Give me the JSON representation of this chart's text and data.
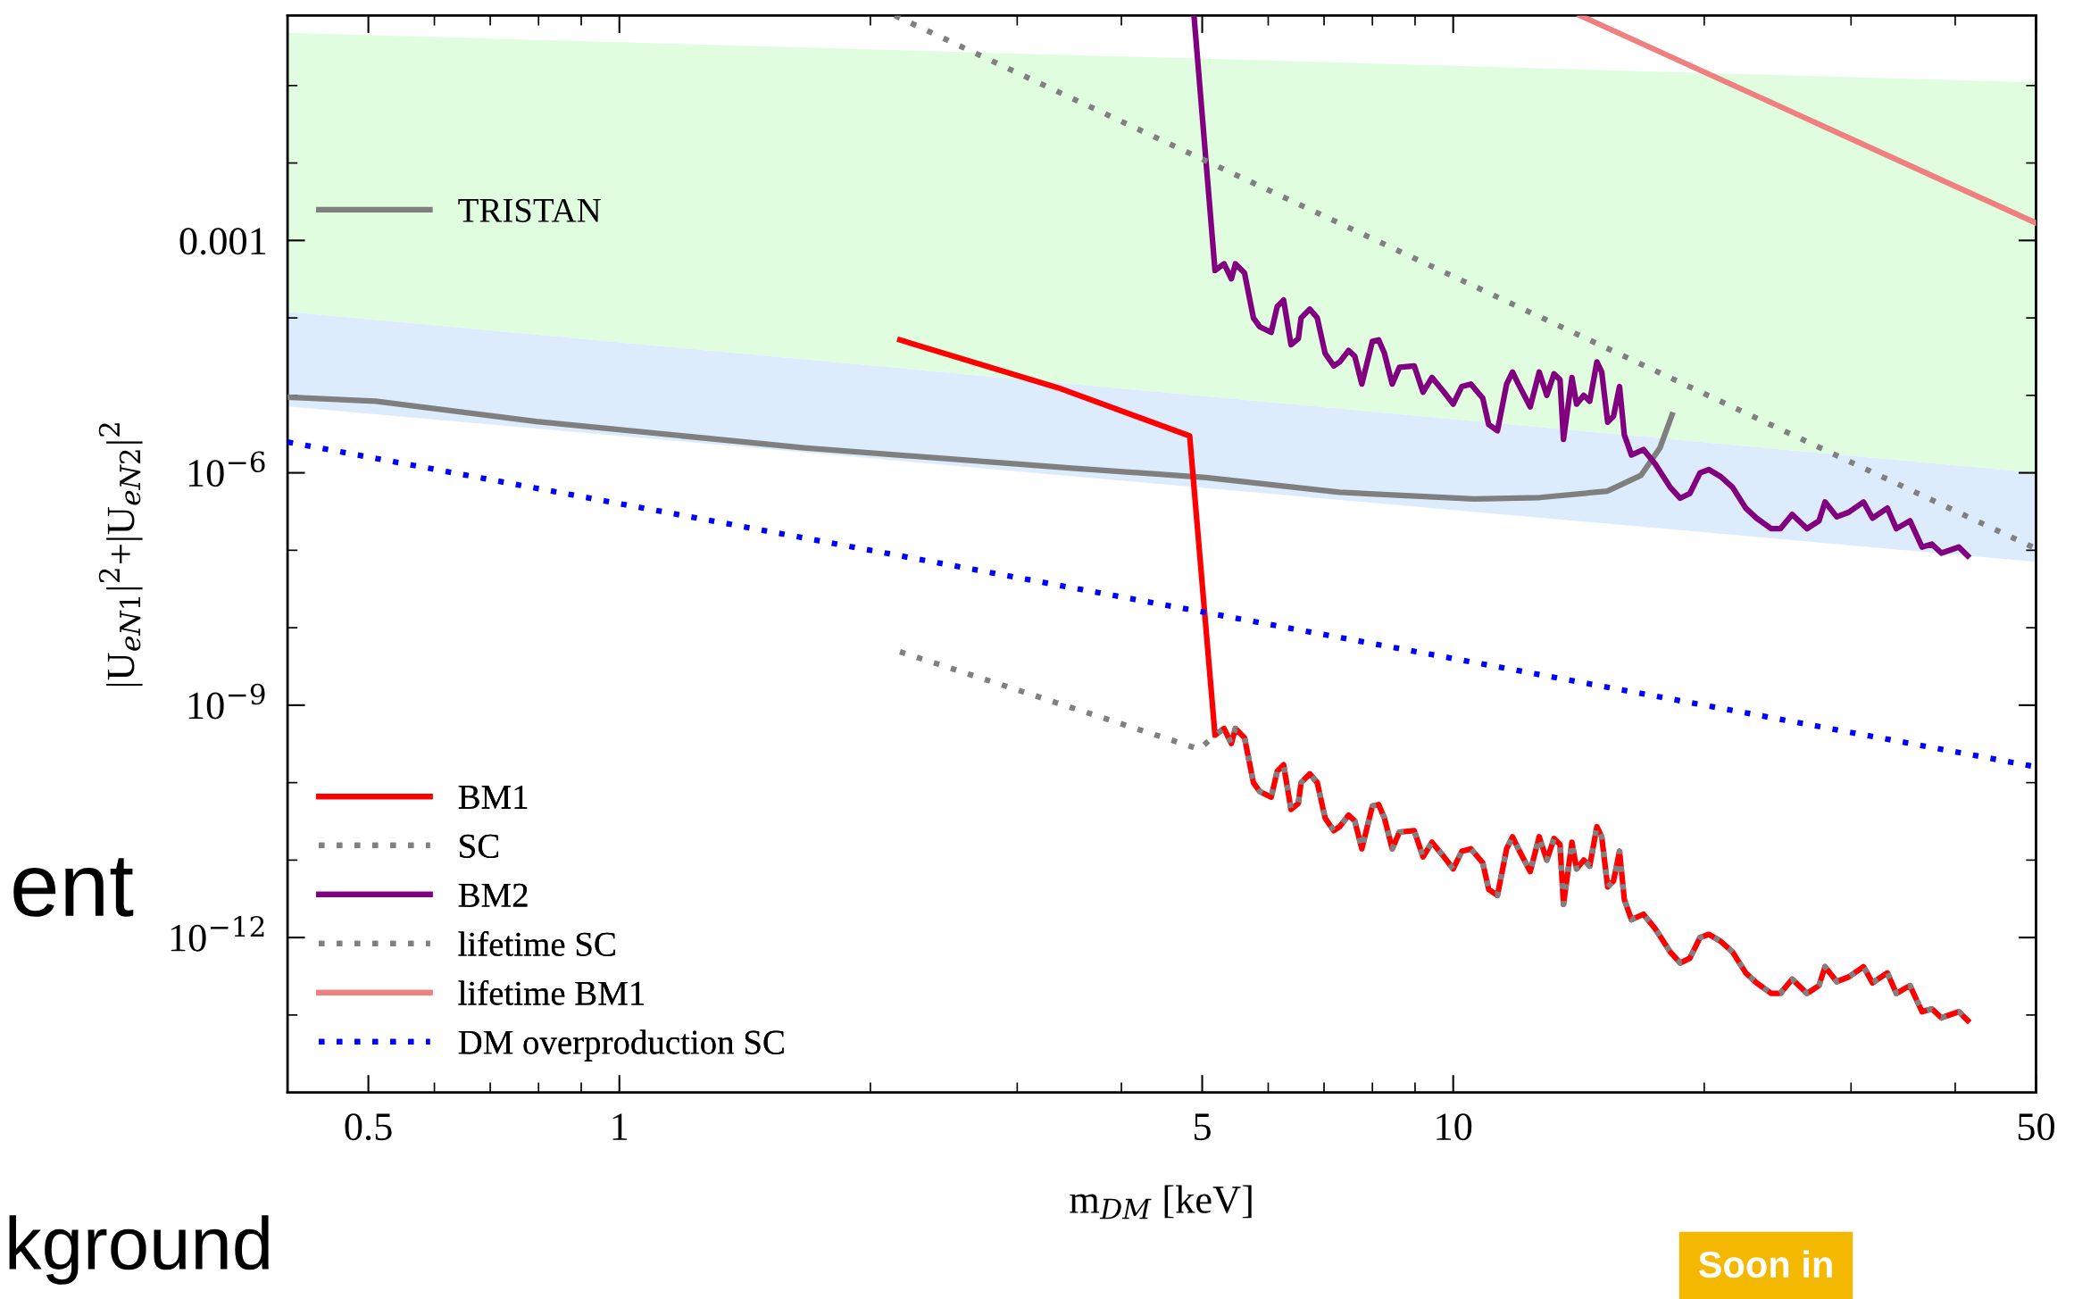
{
  "chart_data": {
    "type": "line",
    "xlabel": "m$_{DM}$ [keV]",
    "ylabel": "|U$_{eN1}$|$^{2}$+|U$_{eN2}$|$^{2}$",
    "log": "xy",
    "grid": false,
    "legend": "bottom left",
    "xlim": [
      0.4,
      50
    ],
    "ylim": [
      1e-14,
      0.8
    ],
    "xticks": [
      0.5,
      {
        "value": 0.6,
        "label": null
      },
      {
        "value": 0.7,
        "label": null
      },
      {
        "value": 0.8,
        "label": null
      },
      {
        "value": 0.9,
        "label": null
      },
      1,
      {
        "value": 2,
        "label": null
      },
      {
        "value": 3,
        "label": null
      },
      {
        "value": 4,
        "label": null
      },
      5,
      {
        "value": 6,
        "label": null
      },
      {
        "value": 7,
        "label": null
      },
      {
        "value": 8,
        "label": null
      },
      {
        "value": 9,
        "label": null
      },
      10,
      {
        "value": 20,
        "label": null
      },
      {
        "value": 30,
        "label": null
      },
      {
        "value": 40,
        "label": null
      },
      50
    ],
    "yticks": [
      {
        "value": 1e-13,
        "label": null
      },
      {
        "value": 1e-12,
        "label": "10$^{−12}$"
      },
      {
        "value": 1e-11,
        "label": null
      },
      {
        "value": 1e-10,
        "label": null
      },
      {
        "value": 1e-09,
        "label": "10$^{−9}$"
      },
      {
        "value": 1e-08,
        "label": null
      },
      {
        "value": 1e-07,
        "label": null
      },
      {
        "value": 1e-06,
        "label": "10$^{−6}$"
      },
      {
        "value": 1e-05,
        "label": null
      },
      {
        "value": 0.0001,
        "label": null
      },
      {
        "value": 0.001,
        "label": "0.001"
      },
      {
        "value": 0.01,
        "label": null
      },
      {
        "value": 0.1,
        "label": null
      }
    ],
    "annotations": [
      "ent",
      "kground",
      "Soon in"
    ],
    "series": [
      {
        "type": "area",
        "color": "#e0fde0",
        "x": [
          0.4,
          50
        ],
        "values": [
          null,
          null
        ],
        "upper": [
          0.48,
          0.11
        ],
        "lower": [
          0.00012,
          1e-06
        ]
      },
      {
        "type": "area",
        "color": "#dcecfd",
        "x": [
          0.4,
          50
        ],
        "values": [
          null,
          null
        ],
        "upper": [
          0.00012,
          1e-06
        ],
        "lower": [
          7.2e-06,
          7.1e-08
        ]
      },
      {
        "name": "TRISTAN",
        "color": "#7f7f7f",
        "line_style": "solid",
        "x": [
          0.4,
          0.51,
          0.795,
          1.665,
          3.49,
          5.05,
          7.31,
          10.6,
          12.7,
          15.3,
          16.8,
          17.7,
          18.3
        ],
        "values": [
          9.5e-06,
          8.4e-06,
          4.6e-06,
          2.1e-06,
          1.15e-06,
          8.7e-07,
          5.6e-07,
          4.6e-07,
          4.8e-07,
          5.8e-07,
          9.3e-07,
          2.1e-06,
          5.6e-06
        ]
      },
      {
        "name": "BM1",
        "color": "#ff0000",
        "line_style": "solid",
        "x": [
          2.17,
          3.36,
          4.83,
          5.18,
          5.31,
          5.42,
          5.48,
          5.62,
          5.76,
          5.86,
          6.05,
          6.15,
          6.26,
          6.39,
          6.52,
          6.57,
          6.73,
          6.87,
          7.02,
          7.19,
          7.31,
          7.49,
          7.62,
          7.77,
          8.0,
          8.14,
          8.27,
          8.45,
          8.62,
          8.98,
          9.2,
          9.43,
          9.75,
          10.0,
          10.24,
          10.5,
          10.85,
          11.03,
          11.3,
          11.59,
          11.78,
          11.97,
          12.37,
          12.68,
          12.95,
          13.21,
          13.43,
          13.56,
          13.88,
          14.06,
          14.34,
          14.58,
          14.87,
          15.07,
          15.32,
          15.57,
          15.83,
          16.04,
          16.36,
          16.91,
          17.47,
          18.21,
          18.72,
          19.22,
          19.77,
          20.26,
          20.94,
          21.63,
          22.43,
          23.11,
          24.07,
          24.68,
          25.5,
          26.57,
          27.46,
          27.92,
          28.84,
          29.81,
          31.05,
          31.83,
          33.17,
          34.0,
          35.3,
          36.5,
          37.5,
          38.5,
          40.4,
          41.4
        ],
        "values": [
          5.2e-05,
          1.25e-05,
          3e-06,
          4.1e-10,
          5e-10,
          3.2e-10,
          5e-10,
          3.8e-10,
          1e-10,
          7.7e-11,
          6.5e-11,
          1.4e-10,
          1.7e-10,
          4.5e-11,
          5.4e-11,
          1e-10,
          1.3e-10,
          1e-10,
          3.5e-11,
          2.4e-11,
          2.7e-11,
          3.8e-11,
          3.2e-11,
          1.4e-11,
          5e-11,
          5.2e-11,
          3.5e-11,
          1.4e-11,
          2.3e-11,
          2.4e-11,
          1.1e-11,
          1.7e-11,
          1.1e-11,
          7.7e-12,
          1.3e-11,
          1.4e-11,
          9.2e-12,
          4.2e-12,
          3.5e-12,
          1.4e-11,
          2e-11,
          1.4e-11,
          7.1e-12,
          2e-11,
          1e-11,
          1.9e-11,
          1.6e-11,
          2.7e-12,
          1.7e-11,
          7.7e-12,
          1e-11,
          8.4e-12,
          2.7e-11,
          2e-11,
          4.5e-12,
          5.4e-12,
          1.3e-11,
          3.1e-12,
          1.7e-12,
          2e-12,
          1.3e-12,
          6.5e-13,
          4.7e-13,
          5.4e-13,
          1e-12,
          1.1e-12,
          8.9e-13,
          6.5e-13,
          3.5e-13,
          2.6e-13,
          1.9e-13,
          1.9e-13,
          2.9e-13,
          1.9e-13,
          2.4e-13,
          4.2e-13,
          2.7e-13,
          3.1e-13,
          4.2e-13,
          2.6e-13,
          3.5e-13,
          1.9e-13,
          2.4e-13,
          1.1e-13,
          1.2e-13,
          9.2e-14,
          1.1e-13,
          8.5e-14
        ]
      },
      {
        "name": "SC",
        "color": "#808080",
        "line_style": "dotted",
        "x": [
          2.17,
          4.96,
          5.18,
          5.31,
          5.42,
          5.48,
          5.62,
          5.76,
          5.86,
          6.05,
          6.15,
          6.26,
          6.39,
          6.52,
          6.57,
          6.73,
          6.87,
          7.02,
          7.19,
          7.31,
          7.49,
          7.62,
          7.77,
          8.0,
          8.14,
          8.27,
          8.45,
          8.62,
          8.98,
          9.2,
          9.43,
          9.75,
          10.0,
          10.24,
          10.5,
          10.85,
          11.03,
          11.3,
          11.59,
          11.78,
          11.97,
          12.37,
          12.68,
          12.95,
          13.21,
          13.43,
          13.56,
          13.88,
          14.06,
          14.34,
          14.58,
          14.87,
          15.07,
          15.32,
          15.57,
          15.83,
          16.04,
          16.36,
          16.91,
          17.47,
          18.21,
          18.72,
          19.22,
          19.77,
          20.26,
          20.94,
          21.63,
          22.43,
          23.11,
          24.07,
          24.68,
          25.5,
          26.57,
          27.46,
          27.92,
          28.84,
          29.81,
          31.05,
          31.83,
          33.17,
          34.0,
          35.3,
          36.5,
          37.5,
          38.5,
          40.4,
          41.4
        ],
        "values": [
          4.9e-09,
          2.7e-10,
          4.1e-10,
          5e-10,
          3.2e-10,
          5e-10,
          3.8e-10,
          1e-10,
          7.7e-11,
          6.5e-11,
          1.4e-10,
          1.7e-10,
          4.5e-11,
          5.4e-11,
          1e-10,
          1.3e-10,
          1e-10,
          3.5e-11,
          2.4e-11,
          2.7e-11,
          3.8e-11,
          3.2e-11,
          1.4e-11,
          5e-11,
          5.2e-11,
          3.5e-11,
          1.4e-11,
          2.3e-11,
          2.4e-11,
          1.1e-11,
          1.7e-11,
          1.1e-11,
          7.7e-12,
          1.3e-11,
          1.4e-11,
          9.2e-12,
          4.2e-12,
          3.5e-12,
          1.4e-11,
          2e-11,
          1.4e-11,
          7.1e-12,
          2e-11,
          1e-11,
          1.9e-11,
          1.6e-11,
          2.7e-12,
          1.7e-11,
          7.7e-12,
          1e-11,
          8.4e-12,
          2.7e-11,
          2e-11,
          4.5e-12,
          5.4e-12,
          1.3e-11,
          3.1e-12,
          1.7e-12,
          2e-12,
          1.3e-12,
          6.5e-13,
          4.7e-13,
          5.4e-13,
          1e-12,
          1.1e-12,
          8.9e-13,
          6.5e-13,
          3.5e-13,
          2.6e-13,
          1.9e-13,
          1.9e-13,
          2.9e-13,
          1.9e-13,
          2.4e-13,
          4.2e-13,
          2.7e-13,
          3.1e-13,
          4.2e-13,
          2.6e-13,
          3.5e-13,
          1.9e-13,
          2.4e-13,
          1.1e-13,
          1.2e-13,
          9.2e-14,
          1.1e-13,
          8.5e-14
        ]
      },
      {
        "name": "BM2",
        "color": "#800080",
        "line_style": "solid",
        "x": [
          4.89,
          5.18,
          5.31,
          5.42,
          5.48,
          5.62,
          5.76,
          5.86,
          6.05,
          6.15,
          6.26,
          6.39,
          6.52,
          6.57,
          6.73,
          6.87,
          7.02,
          7.19,
          7.31,
          7.49,
          7.62,
          7.77,
          8.0,
          8.14,
          8.27,
          8.45,
          8.62,
          8.98,
          9.2,
          9.43,
          9.75,
          10.0,
          10.24,
          10.5,
          10.85,
          11.03,
          11.3,
          11.59,
          11.78,
          11.97,
          12.37,
          12.68,
          12.95,
          13.21,
          13.43,
          13.56,
          13.88,
          14.06,
          14.34,
          14.58,
          14.87,
          15.07,
          15.32,
          15.57,
          15.83,
          16.04,
          16.36,
          16.91,
          17.47,
          18.21,
          18.72,
          19.22,
          19.77,
          20.26,
          20.94,
          21.63,
          22.43,
          23.11,
          24.07,
          24.68,
          25.5,
          26.57,
          27.46,
          27.92,
          28.84,
          29.81,
          31.05,
          31.83,
          33.17,
          34.0,
          35.3,
          36.5,
          37.5,
          38.5,
          40.4,
          41.4
        ],
        "values": [
          0.76,
          0.00041,
          0.0005,
          0.00032,
          0.0005,
          0.00038,
          0.0001,
          7.7e-05,
          6.5e-05,
          0.00014,
          0.00017,
          4.5e-05,
          5.4e-05,
          0.0001,
          0.00013,
          0.0001,
          3.5e-05,
          2.4e-05,
          2.7e-05,
          3.8e-05,
          3.2e-05,
          1.4e-05,
          5e-05,
          5.2e-05,
          3.5e-05,
          1.4e-05,
          2.3e-05,
          2.4e-05,
          1.1e-05,
          1.7e-05,
          1.1e-05,
          7.7e-06,
          1.3e-05,
          1.4e-05,
          9.2e-06,
          4.2e-06,
          3.5e-06,
          1.4e-05,
          2e-05,
          1.4e-05,
          7.1e-06,
          2e-05,
          1e-05,
          1.9e-05,
          1.6e-05,
          2.7e-06,
          1.7e-05,
          7.7e-06,
          1e-05,
          8.4e-06,
          2.7e-05,
          2e-05,
          4.5e-06,
          5.4e-06,
          1.3e-05,
          3.1e-06,
          1.7e-06,
          2e-06,
          1.3e-06,
          6.5e-07,
          4.7e-07,
          5.4e-07,
          1e-06,
          1.1e-06,
          8.9e-07,
          6.5e-07,
          3.5e-07,
          2.6e-07,
          1.9e-07,
          1.9e-07,
          2.9e-07,
          1.9e-07,
          2.4e-07,
          4.2e-07,
          2.7e-07,
          3.1e-07,
          4.2e-07,
          2.6e-07,
          3.5e-07,
          1.9e-07,
          2.4e-07,
          1.1e-07,
          1.2e-07,
          9.2e-08,
          1.1e-07,
          8.5e-08
        ]
      },
      {
        "name": "lifetime SC",
        "color": "#808080",
        "line_style": "dotted",
        "x": [
          2.14,
          50
        ],
        "values": [
          0.8,
          1.05e-07
        ]
      },
      {
        "name": "lifetime BM1",
        "color": "#f08080",
        "line_style": "solid",
        "x": [
          14.2,
          50
        ],
        "values": [
          0.8,
          0.00168
        ]
      },
      {
        "name": "DM overproduction SC",
        "color": "#0000ff",
        "line_style": "dotted",
        "x": [
          0.4,
          50
        ],
        "values": [
          2.5e-06,
          1.6e-10
        ]
      }
    ]
  }
}
